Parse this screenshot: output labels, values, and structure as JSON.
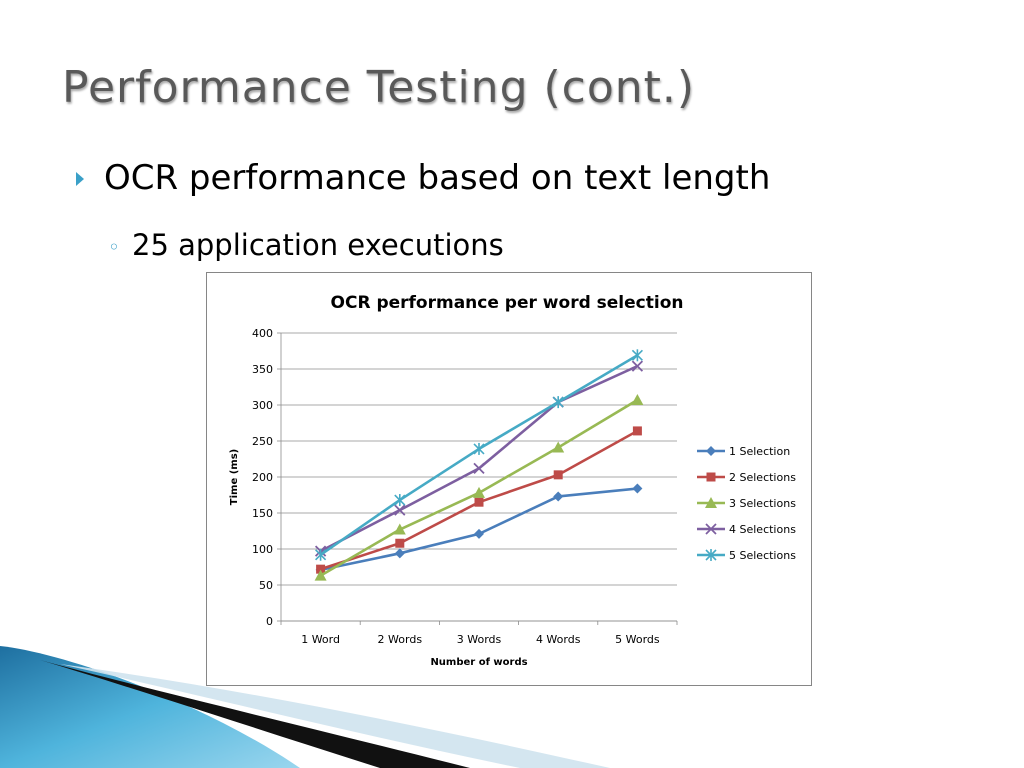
{
  "slide": {
    "title": "Performance Testing (cont.)",
    "bullet1": "OCR performance based on text length",
    "bullet2": "25 application executions",
    "bullet1_marker": "triangle-bullet",
    "bullet2_marker": "◦"
  },
  "chart_data": {
    "type": "line",
    "title": "OCR performance per word selection",
    "xlabel": "Number of words",
    "ylabel": "Time (ms)",
    "categories": [
      "1 Word",
      "2 Words",
      "3 Words",
      "4 Words",
      "5 Words"
    ],
    "ylim": [
      0,
      400
    ],
    "yticks": [
      0,
      50,
      100,
      150,
      200,
      250,
      300,
      350,
      400
    ],
    "grid": true,
    "legend_position": "right",
    "series": [
      {
        "name": "1 Selection",
        "color": "#4a7ebb",
        "marker": "diamond",
        "values": [
          71,
          94,
          121,
          173,
          184
        ]
      },
      {
        "name": "2 Selections",
        "color": "#be4b48",
        "marker": "square",
        "values": [
          72,
          108,
          165,
          203,
          264
        ]
      },
      {
        "name": "3 Selections",
        "color": "#98b954",
        "marker": "triangle",
        "values": [
          63,
          127,
          178,
          241,
          307
        ]
      },
      {
        "name": "4 Selections",
        "color": "#7d5fa0",
        "marker": "x",
        "values": [
          97,
          154,
          212,
          304,
          354
        ]
      },
      {
        "name": "5 Selections",
        "color": "#46aac5",
        "marker": "star",
        "values": [
          92,
          168,
          239,
          304,
          369
        ]
      }
    ]
  }
}
